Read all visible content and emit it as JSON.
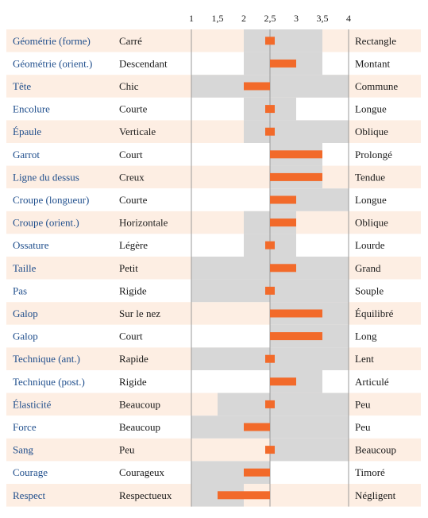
{
  "chart_data": {
    "type": "bar",
    "x_ticks": [
      "1",
      "1,5",
      "2",
      "2,5",
      "3",
      "3,5",
      "4"
    ],
    "xlim": [
      1,
      4
    ],
    "center": 2.5,
    "colors": {
      "row_alt": "#fdeee3",
      "row_plain": "#ffffff",
      "range": "#d7d7d7",
      "bar": "#f26a2a",
      "trait_text": "#1f4e8c",
      "gridline": "#9a9a9a"
    },
    "rows": [
      {
        "trait": "Géométrie (forme)",
        "low": "Carré",
        "high": "Rectangle",
        "range": [
          2,
          3.5
        ],
        "value": 2.5
      },
      {
        "trait": "Géométrie (orient.)",
        "low": "Descendant",
        "high": "Montant",
        "range": [
          2,
          3.5
        ],
        "value": 3
      },
      {
        "trait": "Tête",
        "low": "Chic",
        "high": "Commune",
        "range": [
          1,
          4
        ],
        "value": 2
      },
      {
        "trait": "Encolure",
        "low": "Courte",
        "high": "Longue",
        "range": [
          2,
          3
        ],
        "value": 2.5
      },
      {
        "trait": "Épaule",
        "low": "Verticale",
        "high": "Oblique",
        "range": [
          2,
          4
        ],
        "value": 2.5
      },
      {
        "trait": "Garrot",
        "low": "Court",
        "high": "Prolongé",
        "range": [
          2.5,
          3.5
        ],
        "value": 3.5
      },
      {
        "trait": "Ligne du dessus",
        "low": "Creux",
        "high": "Tendue",
        "range": [
          2.5,
          3.5
        ],
        "value": 3.5
      },
      {
        "trait": "Croupe (longueur)",
        "low": "Courte",
        "high": "Longue",
        "range": [
          2.5,
          4
        ],
        "value": 3
      },
      {
        "trait": "Croupe (orient.)",
        "low": "Horizontale",
        "high": "Oblique",
        "range": [
          2,
          3
        ],
        "value": 3
      },
      {
        "trait": "Ossature",
        "low": "Légère",
        "high": "Lourde",
        "range": [
          2,
          3
        ],
        "value": 2.5
      },
      {
        "trait": "Taille",
        "low": "Petit",
        "high": "Grand",
        "range": [
          1,
          4
        ],
        "value": 3
      },
      {
        "trait": "Pas",
        "low": "Rigide",
        "high": "Souple",
        "range": [
          1,
          4
        ],
        "value": 2.5
      },
      {
        "trait": "Galop",
        "low": "Sur le nez",
        "high": "Équilibré",
        "range": [
          2.5,
          4
        ],
        "value": 3.5
      },
      {
        "trait": "Galop",
        "low": "Court",
        "high": "Long",
        "range": [
          2.5,
          4
        ],
        "value": 3.5
      },
      {
        "trait": "Technique (ant.)",
        "low": "Rapide",
        "high": "Lent",
        "range": [
          1,
          4
        ],
        "value": 2.5
      },
      {
        "trait": "Technique (post.)",
        "low": "Rigide",
        "high": "Articulé",
        "range": [
          2.5,
          3.5
        ],
        "value": 3
      },
      {
        "trait": "Élasticité",
        "low": "Beaucoup",
        "high": "Peu",
        "range": [
          1.5,
          4
        ],
        "value": 2.5
      },
      {
        "trait": "Force",
        "low": "Beaucoup",
        "high": "Peu",
        "range": [
          1,
          4
        ],
        "value": 2
      },
      {
        "trait": "Sang",
        "low": "Peu",
        "high": "Beaucoup",
        "range": [
          2.5,
          4
        ],
        "value": 2.5
      },
      {
        "trait": "Courage",
        "low": "Courageux",
        "high": "Timoré",
        "range": [
          1,
          2.5
        ],
        "value": 2
      },
      {
        "trait": "Respect",
        "low": "Respectueux",
        "high": "Négligent",
        "range": [
          1,
          2
        ],
        "value": 1.5
      }
    ]
  }
}
